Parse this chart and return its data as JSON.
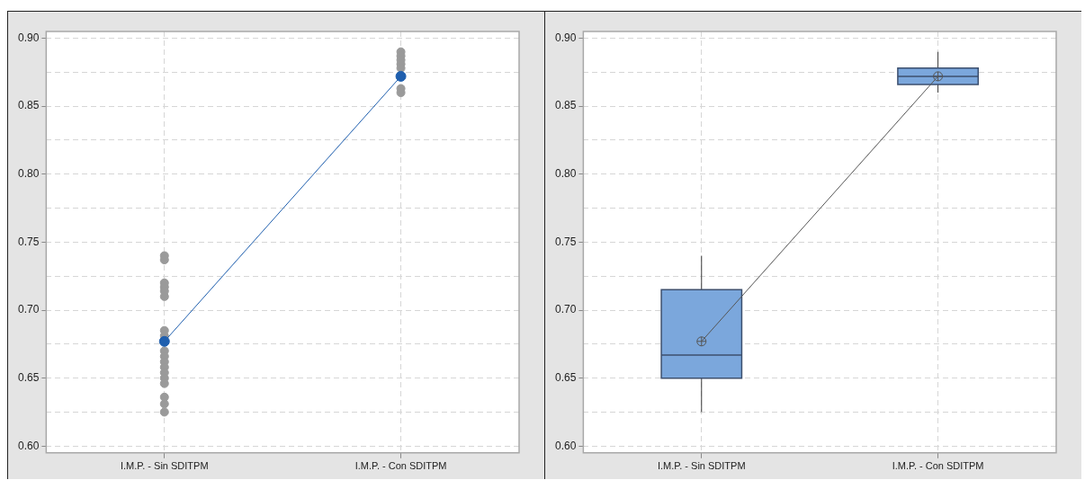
{
  "chart_data": [
    {
      "type": "scatter",
      "categories": [
        "I.M.P. - Sin SDITPM",
        "I.M.P. - Con SDITPM"
      ],
      "ylim": [
        0.595,
        0.905
      ],
      "yticks": [
        {
          "value": 0.6,
          "label": "0.60"
        },
        {
          "value": 0.625,
          "label": null
        },
        {
          "value": 0.65,
          "label": "0.65"
        },
        {
          "value": 0.675,
          "label": null
        },
        {
          "value": 0.7,
          "label": "0.70"
        },
        {
          "value": 0.725,
          "label": null
        },
        {
          "value": 0.75,
          "label": "0.75"
        },
        {
          "value": 0.775,
          "label": null
        },
        {
          "value": 0.8,
          "label": "0.80"
        },
        {
          "value": 0.825,
          "label": null
        },
        {
          "value": 0.85,
          "label": "0.85"
        },
        {
          "value": 0.875,
          "label": null
        },
        {
          "value": 0.9,
          "label": "0.90"
        }
      ],
      "grid": true,
      "series": [
        {
          "type": "scatter",
          "color": "#9a9a9a",
          "marker": "circle",
          "x": [
            "I.M.P. - Sin SDITPM",
            "I.M.P. - Sin SDITPM",
            "I.M.P. - Sin SDITPM",
            "I.M.P. - Sin SDITPM",
            "I.M.P. - Sin SDITPM",
            "I.M.P. - Sin SDITPM",
            "I.M.P. - Sin SDITPM",
            "I.M.P. - Sin SDITPM",
            "I.M.P. - Sin SDITPM",
            "I.M.P. - Sin SDITPM",
            "I.M.P. - Sin SDITPM",
            "I.M.P. - Sin SDITPM",
            "I.M.P. - Sin SDITPM",
            "I.M.P. - Sin SDITPM",
            "I.M.P. - Sin SDITPM",
            "I.M.P. - Sin SDITPM",
            "I.M.P. - Sin SDITPM",
            "I.M.P. - Sin SDITPM",
            "I.M.P. - Sin SDITPM",
            "I.M.P. - Con SDITPM",
            "I.M.P. - Con SDITPM",
            "I.M.P. - Con SDITPM",
            "I.M.P. - Con SDITPM",
            "I.M.P. - Con SDITPM",
            "I.M.P. - Con SDITPM",
            "I.M.P. - Con SDITPM",
            "I.M.P. - Con SDITPM",
            "I.M.P. - Con SDITPM",
            "I.M.P. - Con SDITPM"
          ],
          "values": [
            0.74,
            0.737,
            0.72,
            0.717,
            0.714,
            0.71,
            0.685,
            0.681,
            null,
            0.67,
            0.666,
            0.662,
            0.658,
            0.654,
            0.65,
            0.646,
            0.636,
            0.631,
            0.625,
            0.89,
            0.887,
            0.884,
            0.881,
            0.878,
            null,
            null,
            null,
            0.863,
            0.86
          ]
        },
        {
          "type": "line",
          "color": "#1f5fae",
          "marker": "circle",
          "values": [
            0.677,
            0.872
          ]
        }
      ]
    },
    {
      "type": "box",
      "categories": [
        "I.M.P. - Sin SDITPM",
        "I.M.P. - Con SDITPM"
      ],
      "ylim": [
        0.595,
        0.905
      ],
      "yticks": [
        {
          "value": 0.6,
          "label": "0.60"
        },
        {
          "value": 0.625,
          "label": null
        },
        {
          "value": 0.65,
          "label": "0.65"
        },
        {
          "value": 0.675,
          "label": null
        },
        {
          "value": 0.7,
          "label": "0.70"
        },
        {
          "value": 0.725,
          "label": null
        },
        {
          "value": 0.75,
          "label": "0.75"
        },
        {
          "value": 0.775,
          "label": null
        },
        {
          "value": 0.8,
          "label": "0.80"
        },
        {
          "value": 0.825,
          "label": null
        },
        {
          "value": 0.85,
          "label": "0.85"
        },
        {
          "value": 0.875,
          "label": null
        },
        {
          "value": 0.9,
          "label": "0.90"
        }
      ],
      "grid": true,
      "series": [
        {
          "type": "box",
          "color": "#7ba7dc",
          "boxes": [
            {
              "low": 0.625,
              "q1": 0.65,
              "median": 0.667,
              "q3": 0.715,
              "high": 0.74
            },
            {
              "low": 0.86,
              "q1": 0.866,
              "median": 0.872,
              "q3": 0.878,
              "high": 0.89
            }
          ]
        },
        {
          "type": "line",
          "color": "#555555",
          "marker": "circle",
          "values": [
            0.677,
            0.872
          ]
        }
      ]
    }
  ]
}
